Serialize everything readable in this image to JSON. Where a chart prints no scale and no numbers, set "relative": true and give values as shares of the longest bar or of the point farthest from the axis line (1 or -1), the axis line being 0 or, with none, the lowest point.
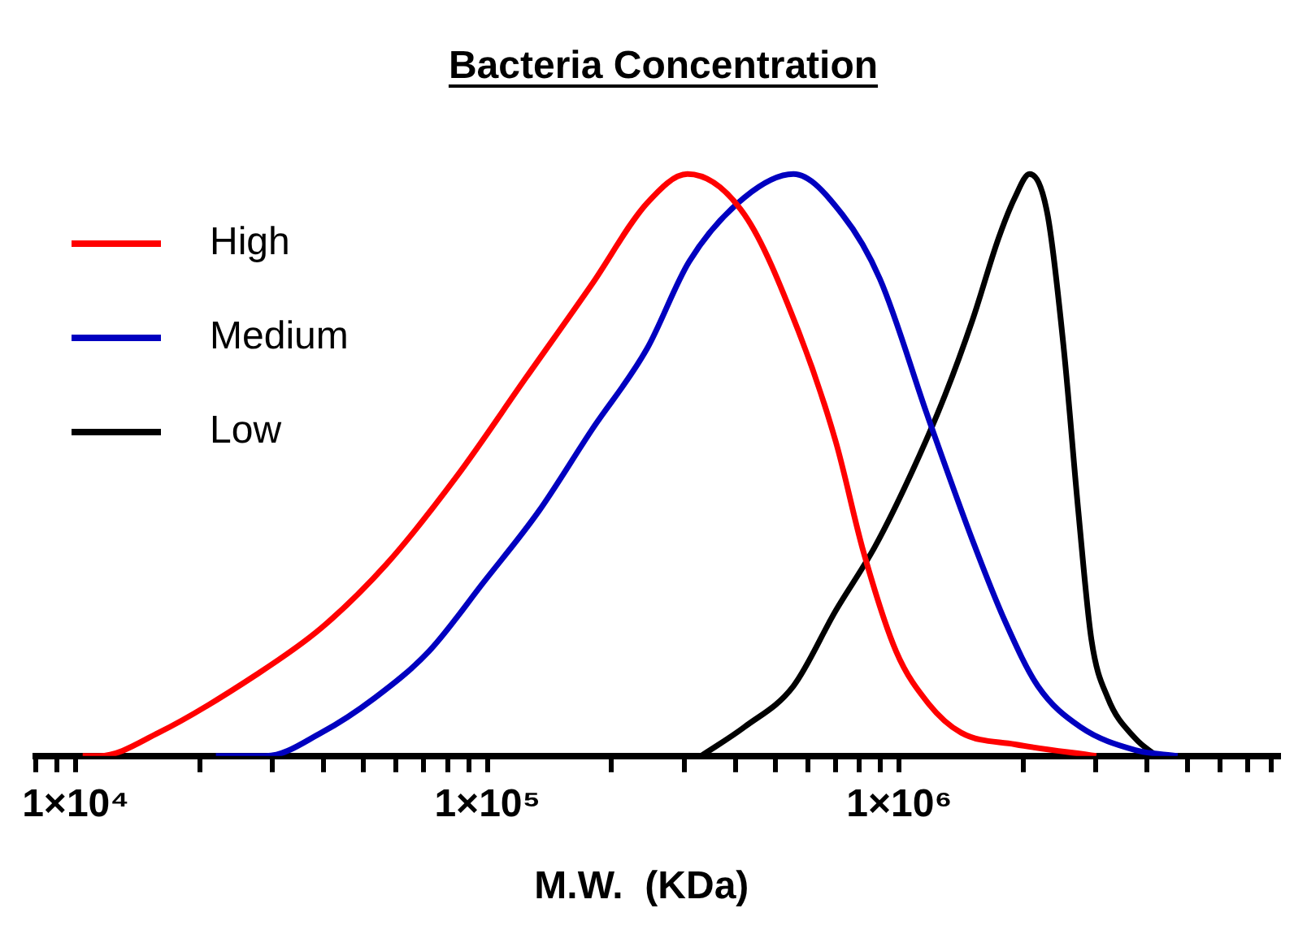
{
  "chart_data": {
    "type": "line",
    "title": "Bacteria Concentration",
    "xlabel": "M.W.  (KDa)",
    "relative": true,
    "log": "x",
    "legend": "top left",
    "marker": "none",
    "line_style": "solid",
    "xlim": [
      8000,
      8400000
    ],
    "xticks": [
      {
        "value": 8000,
        "label": null
      },
      {
        "value": 9000,
        "label": null
      },
      {
        "value": 10000,
        "label": "1×10⁴"
      },
      {
        "value": 20000,
        "label": null
      },
      {
        "value": 30000,
        "label": null
      },
      {
        "value": 40000,
        "label": null
      },
      {
        "value": 50000,
        "label": null
      },
      {
        "value": 60000,
        "label": null
      },
      {
        "value": 70000,
        "label": null
      },
      {
        "value": 80000,
        "label": null
      },
      {
        "value": 90000,
        "label": null
      },
      {
        "value": 100000,
        "label": "1×10⁵"
      },
      {
        "value": 200000,
        "label": null
      },
      {
        "value": 300000,
        "label": null
      },
      {
        "value": 400000,
        "label": null
      },
      {
        "value": 500000,
        "label": null
      },
      {
        "value": 600000,
        "label": null
      },
      {
        "value": 700000,
        "label": null
      },
      {
        "value": 800000,
        "label": null
      },
      {
        "value": 900000,
        "label": null
      },
      {
        "value": 1000000,
        "label": "1×10⁶"
      },
      {
        "value": 2000000,
        "label": null
      },
      {
        "value": 3000000,
        "label": null
      },
      {
        "value": 4000000,
        "label": null
      },
      {
        "value": 5000000,
        "label": null
      },
      {
        "value": 6000000,
        "label": null
      },
      {
        "value": 7000000,
        "label": null
      },
      {
        "value": 8000000,
        "label": null
      }
    ],
    "series": [
      {
        "name": "High",
        "color": "#ff0000",
        "x": [
          10400,
          11400,
          15900,
          27500,
          39500,
          56900,
          84100,
          124000,
          179000,
          244000,
          306000,
          421000,
          569000,
          701000,
          819000,
          982000,
          1177000,
          1413000,
          1909000,
          3008000
        ],
        "values": [
          0,
          0,
          0.04,
          0.14,
          0.22,
          0.33,
          0.48,
          0.65,
          0.81,
          0.95,
          1,
          0.93,
          0.73,
          0.54,
          0.35,
          0.18,
          0.09,
          0.04,
          0.02,
          0
        ]
      },
      {
        "name": "Medium",
        "color": "#0000c0",
        "x": [
          21900,
          29000,
          39500,
          53300,
          72100,
          98200,
          133000,
          179000,
          244000,
          309000,
          421000,
          553000,
          728000,
          897000,
          1177000,
          1507000,
          1810000,
          2170000,
          2749000,
          3743000,
          4740000
        ],
        "values": [
          0,
          0,
          0.04,
          0.1,
          0.18,
          0.3,
          0.42,
          0.56,
          0.7,
          0.85,
          0.96,
          1,
          0.93,
          0.82,
          0.58,
          0.37,
          0.23,
          0.12,
          0.05,
          0.01,
          0
        ]
      },
      {
        "name": "Low",
        "color": "#000000",
        "x": [
          330000,
          421000,
          553000,
          701000,
          873000,
          1076000,
          1291000,
          1507000,
          1742000,
          1909000,
          2072000,
          2291000,
          2508000,
          2721000,
          2927000,
          3207000,
          3743000,
          4217000
        ],
        "values": [
          0,
          0.05,
          0.12,
          0.25,
          0.36,
          0.49,
          0.62,
          0.75,
          0.89,
          0.96,
          1,
          0.93,
          0.7,
          0.42,
          0.2,
          0.1,
          0.03,
          0
        ]
      }
    ]
  }
}
